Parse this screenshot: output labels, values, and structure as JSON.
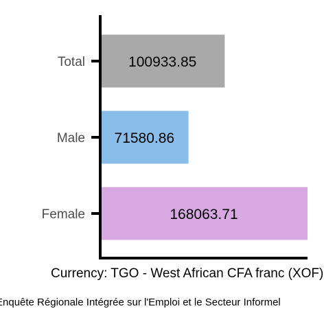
{
  "chart_data": {
    "type": "bar",
    "orientation": "horizontal",
    "categories": [
      "Total",
      "Male",
      "Female"
    ],
    "values": [
      100933.85,
      71580.86,
      168063.71
    ],
    "value_labels": [
      "100933.85",
      "71580.86",
      "168063.71"
    ],
    "colors": [
      "#a9a9a9",
      "#8bbdea",
      "#d7a8e2"
    ],
    "title": "",
    "xlabel": "Currency: TGO - West African CFA franc (XOF)",
    "ylabel": "",
    "xlim": [
      0,
      168063.71
    ],
    "grid": false,
    "legend": "none"
  },
  "caption": "Enquête Régionale Intégrée sur l'Emploi et le Secteur Informel",
  "colors": {
    "axis": "#000000",
    "tick_label": "#4d4d4d",
    "value_label": "#000000"
  }
}
